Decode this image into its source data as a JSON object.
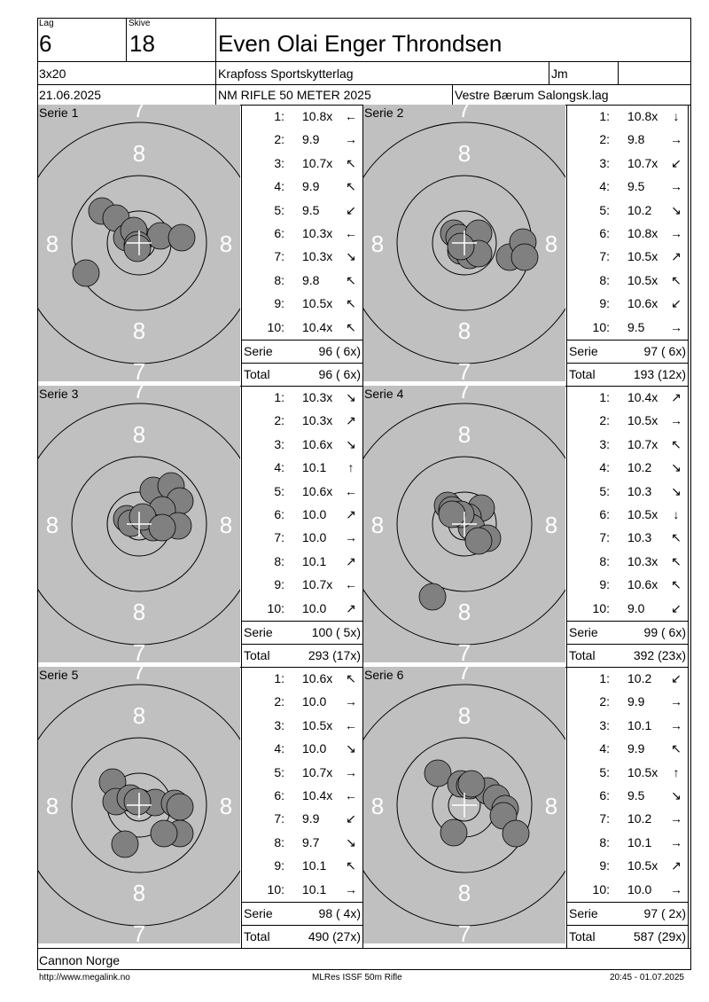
{
  "header": {
    "lag_label": "Lag",
    "lag": "6",
    "skive_label": "Skive",
    "skive": "18",
    "name": "Even Olai Enger Throndsen",
    "discipline": "3x20",
    "club": "Krapfoss Sportskytterlag",
    "class": "Jm",
    "date": "21.06.2025",
    "competition": "NM RIFLE 50 METER 2025",
    "venue": "Vestre Bærum Salongsk.lag"
  },
  "ring_labels": {
    "seven": "7",
    "eight": "8"
  },
  "sum_labels": {
    "serie": "Serie",
    "total": "Total"
  },
  "series": [
    {
      "title": "Serie 1",
      "shots": [
        {
          "n": "1:",
          "v": "10.8x",
          "a": "←"
        },
        {
          "n": "2:",
          "v": "9.9",
          "a": "→"
        },
        {
          "n": "3:",
          "v": "10.7x",
          "a": "↖"
        },
        {
          "n": "4:",
          "v": "9.9",
          "a": "↖"
        },
        {
          "n": "5:",
          "v": "9.5",
          "a": "↙"
        },
        {
          "n": "6:",
          "v": "10.3x",
          "a": "←"
        },
        {
          "n": "7:",
          "v": "10.3x",
          "a": "↘"
        },
        {
          "n": "8:",
          "v": "9.8",
          "a": "↖"
        },
        {
          "n": "9:",
          "v": "10.5x",
          "a": "↖"
        },
        {
          "n": "10:",
          "v": "10.4x",
          "a": "↖"
        }
      ],
      "serie": "96 ( 6x)",
      "total": "96 ( 6x)"
    },
    {
      "title": "Serie 2",
      "shots": [
        {
          "n": "1:",
          "v": "10.8x",
          "a": "↓"
        },
        {
          "n": "2:",
          "v": "9.8",
          "a": "→"
        },
        {
          "n": "3:",
          "v": "10.7x",
          "a": "↙"
        },
        {
          "n": "4:",
          "v": "9.5",
          "a": "→"
        },
        {
          "n": "5:",
          "v": "10.2",
          "a": "↘"
        },
        {
          "n": "6:",
          "v": "10.8x",
          "a": "→"
        },
        {
          "n": "7:",
          "v": "10.5x",
          "a": "↗"
        },
        {
          "n": "8:",
          "v": "10.5x",
          "a": "↖"
        },
        {
          "n": "9:",
          "v": "10.6x",
          "a": "↙"
        },
        {
          "n": "10:",
          "v": "9.5",
          "a": "→"
        }
      ],
      "serie": "97 ( 6x)",
      "total": "193 (12x)"
    },
    {
      "title": "Serie 3",
      "shots": [
        {
          "n": "1:",
          "v": "10.3x",
          "a": "↘"
        },
        {
          "n": "2:",
          "v": "10.3x",
          "a": "↗"
        },
        {
          "n": "3:",
          "v": "10.6x",
          "a": "↘"
        },
        {
          "n": "4:",
          "v": "10.1",
          "a": "↑"
        },
        {
          "n": "5:",
          "v": "10.6x",
          "a": "←"
        },
        {
          "n": "6:",
          "v": "10.0",
          "a": "↗"
        },
        {
          "n": "7:",
          "v": "10.0",
          "a": "→"
        },
        {
          "n": "8:",
          "v": "10.1",
          "a": "↗"
        },
        {
          "n": "9:",
          "v": "10.7x",
          "a": "←"
        },
        {
          "n": "10:",
          "v": "10.0",
          "a": "↗"
        }
      ],
      "serie": "100 ( 5x)",
      "total": "293 (17x)"
    },
    {
      "title": "Serie 4",
      "shots": [
        {
          "n": "1:",
          "v": "10.4x",
          "a": "↗"
        },
        {
          "n": "2:",
          "v": "10.5x",
          "a": "→"
        },
        {
          "n": "3:",
          "v": "10.7x",
          "a": "↖"
        },
        {
          "n": "4:",
          "v": "10.2",
          "a": "↘"
        },
        {
          "n": "5:",
          "v": "10.3",
          "a": "↘"
        },
        {
          "n": "6:",
          "v": "10.5x",
          "a": "↓"
        },
        {
          "n": "7:",
          "v": "10.3",
          "a": "↖"
        },
        {
          "n": "8:",
          "v": "10.3x",
          "a": "↖"
        },
        {
          "n": "9:",
          "v": "10.6x",
          "a": "↖"
        },
        {
          "n": "10:",
          "v": "9.0",
          "a": "↙"
        }
      ],
      "serie": "99 ( 6x)",
      "total": "392 (23x)"
    },
    {
      "title": "Serie 5",
      "shots": [
        {
          "n": "1:",
          "v": "10.6x",
          "a": "↖"
        },
        {
          "n": "2:",
          "v": "10.0",
          "a": "→"
        },
        {
          "n": "3:",
          "v": "10.5x",
          "a": "←"
        },
        {
          "n": "4:",
          "v": "10.0",
          "a": "↘"
        },
        {
          "n": "5:",
          "v": "10.7x",
          "a": "→"
        },
        {
          "n": "6:",
          "v": "10.4x",
          "a": "←"
        },
        {
          "n": "7:",
          "v": "9.9",
          "a": "↙"
        },
        {
          "n": "8:",
          "v": "9.7",
          "a": "↘"
        },
        {
          "n": "9:",
          "v": "10.1",
          "a": "↖"
        },
        {
          "n": "10:",
          "v": "10.1",
          "a": "→"
        }
      ],
      "serie": "98 ( 4x)",
      "total": "490 (27x)"
    },
    {
      "title": "Serie 6",
      "shots": [
        {
          "n": "1:",
          "v": "10.2",
          "a": "↙"
        },
        {
          "n": "2:",
          "v": "9.9",
          "a": "→"
        },
        {
          "n": "3:",
          "v": "10.1",
          "a": "→"
        },
        {
          "n": "4:",
          "v": "9.9",
          "a": "↖"
        },
        {
          "n": "5:",
          "v": "10.5x",
          "a": "↑"
        },
        {
          "n": "6:",
          "v": "9.5",
          "a": "↘"
        },
        {
          "n": "7:",
          "v": "10.2",
          "a": "→"
        },
        {
          "n": "8:",
          "v": "10.1",
          "a": "→"
        },
        {
          "n": "9:",
          "v": "10.5x",
          "a": "↗"
        },
        {
          "n": "10:",
          "v": "10.0",
          "a": "→"
        }
      ],
      "serie": "97 ( 2x)",
      "total": "587 (29x)"
    }
  ],
  "sponsor": "Cannon Norge",
  "footer": {
    "url": "http://www.megalink.no",
    "program": "MLRes ISSF 50m Rifle",
    "printed": "20:45 - 01.07.2025"
  },
  "colors": {
    "target_bg": "#c0c0c0",
    "shot": "#808080",
    "ring": "#000000",
    "ring_number": "#ffffff"
  }
}
